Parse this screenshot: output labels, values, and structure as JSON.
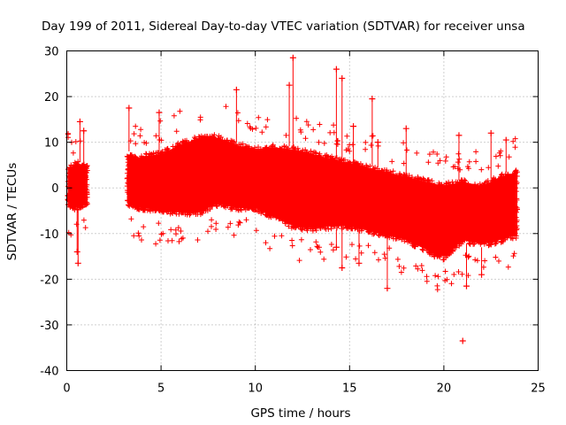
{
  "chart_data": {
    "type": "scatter",
    "title": "Day 199 of 2011, Sidereal Day-to-day VTEC variation (SDTVAR) for receiver unsa",
    "xlabel": "GPS time / hours",
    "ylabel": "SDTVAR / TECUs",
    "xlim": [
      0,
      25
    ],
    "ylim": [
      -40,
      30
    ],
    "xticks": [
      0,
      5,
      10,
      15,
      20,
      25
    ],
    "xtick_labels": [
      "0",
      "5",
      "10",
      "15",
      "20",
      "25"
    ],
    "yticks": [
      -40,
      -30,
      -20,
      -10,
      0,
      10,
      20,
      30
    ],
    "ytick_labels": [
      "-40",
      "-30",
      "-20",
      "-10",
      "0",
      "10",
      "20",
      "30"
    ],
    "grid": true,
    "marker": "+",
    "color": "#ff0000",
    "series": [
      {
        "name": "SDTVAR",
        "segments": [
          [
            0.05,
            1.1
          ],
          [
            3.2,
            23.9
          ]
        ],
        "envelope": {
          "t": [
            0.1,
            0.5,
            1.0,
            3.3,
            3.5,
            4.0,
            5.0,
            6.0,
            7.0,
            7.5,
            8.0,
            9.0,
            10.0,
            11.0,
            12.0,
            13.0,
            14.0,
            15.0,
            16.0,
            17.0,
            18.0,
            19.0,
            20.0,
            21.0,
            22.0,
            23.0,
            23.8
          ],
          "upper": [
            5.0,
            6.0,
            5.0,
            8.0,
            7.0,
            7.5,
            8.0,
            10.0,
            11.5,
            12.0,
            11.5,
            10.0,
            9.0,
            9.5,
            9.0,
            8.0,
            7.0,
            6.0,
            5.0,
            4.0,
            3.0,
            2.0,
            1.0,
            2.0,
            1.0,
            3.0,
            4.0
          ],
          "lower": [
            -4.0,
            -5.0,
            -4.0,
            -4.0,
            -4.5,
            -5.0,
            -5.5,
            -6.0,
            -6.0,
            -5.0,
            -4.0,
            -5.0,
            -5.0,
            -7.0,
            -9.0,
            -9.5,
            -9.0,
            -9.0,
            -10.0,
            -11.0,
            -12.0,
            -14.0,
            -16.0,
            -12.0,
            -13.0,
            -12.0,
            -11.0
          ]
        },
        "outliers": [
          {
            "x": 9.0,
            "y": 21.5
          },
          {
            "x": 11.8,
            "y": 22.5
          },
          {
            "x": 12.0,
            "y": 28.5
          },
          {
            "x": 14.3,
            "y": 26.0
          },
          {
            "x": 14.6,
            "y": 24.0
          },
          {
            "x": 16.2,
            "y": 19.5
          },
          {
            "x": 15.2,
            "y": 13.5
          },
          {
            "x": 3.3,
            "y": 17.5
          },
          {
            "x": 4.9,
            "y": 16.5
          },
          {
            "x": 0.7,
            "y": 14.5
          },
          {
            "x": 0.9,
            "y": 12.5
          },
          {
            "x": 0.6,
            "y": -16.5
          },
          {
            "x": 0.55,
            "y": -14.0
          },
          {
            "x": 17.0,
            "y": -22.0
          },
          {
            "x": 21.2,
            "y": -21.5
          },
          {
            "x": 21.0,
            "y": -33.5
          },
          {
            "x": 14.3,
            "y": -13.0
          },
          {
            "x": 14.6,
            "y": -17.5
          },
          {
            "x": 15.5,
            "y": -16.5
          },
          {
            "x": 19.5,
            "y": -15.0
          },
          {
            "x": 22.0,
            "y": -19.0
          },
          {
            "x": 23.3,
            "y": 10.5
          },
          {
            "x": 22.5,
            "y": 12.0
          },
          {
            "x": 20.8,
            "y": 11.5
          },
          {
            "x": 18.0,
            "y": 13.0
          },
          {
            "x": 16.5,
            "y": 10.0
          }
        ]
      }
    ]
  }
}
